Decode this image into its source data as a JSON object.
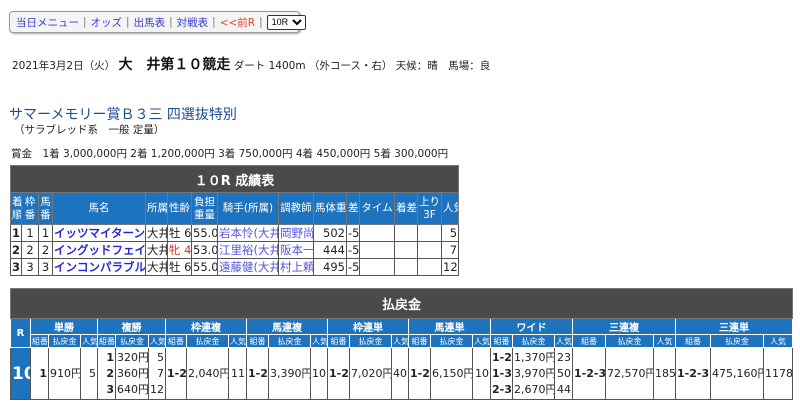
{
  "nav": {
    "menu": "当日メニュー",
    "odds": "オッズ",
    "entries": "出馬表",
    "matchup": "対戦表",
    "prev": "<<前R",
    "race_select": "10R"
  },
  "race": {
    "date": "2021年3月2日（火）",
    "name": "大　井第１０競走",
    "course": "ダート 1400m （外コース・右） 天候：晴　馬場：良"
  },
  "title": "サマーメモリー賞Ｂ３三 四選抜特別",
  "subtitle": "（サラブレッド系　一般 定量）",
  "prize": "賞金　1着 3,000,000円 2着 1,200,000円 3着 750,000円 4着 450,000円 5着 300,000円",
  "results": {
    "caption": "１０R 成績表",
    "headers": [
      "着順",
      "枠番",
      "馬番",
      "馬名",
      "所属",
      "性齢",
      "負担重量",
      "騎手(所属)",
      "調教師",
      "馬体重",
      "差",
      "タイム",
      "着差",
      "上り3F",
      "人気"
    ],
    "rows": [
      {
        "pos": "1",
        "frame": "1",
        "num": "1",
        "horse": "イッツマイターン",
        "belong": "大井",
        "sexage": "牡 6",
        "weight": "55.0",
        "jockey": "岩本怜(大井)",
        "trainer": "岡野尚",
        "body": "502",
        "diff": "-5",
        "time": "",
        "margin": "",
        "f3": "",
        "pop": "5"
      },
      {
        "pos": "2",
        "frame": "2",
        "num": "2",
        "horse": "イングッドフェイス",
        "belong": "大井",
        "sexage": "牝 4",
        "weight": "53.0",
        "jockey": "江里裕(大井)",
        "trainer": "阪本一",
        "body": "444",
        "diff": "-5",
        "time": "",
        "margin": "",
        "f3": "",
        "pop": "7"
      },
      {
        "pos": "3",
        "frame": "3",
        "num": "3",
        "horse": "インコンパラブル",
        "belong": "大井",
        "sexage": "牡 6",
        "weight": "55.0",
        "jockey": "遠藤健(大井)",
        "trainer": "村上頼",
        "body": "495",
        "diff": "-5",
        "time": "",
        "margin": "",
        "f3": "",
        "pop": "12"
      }
    ]
  },
  "payout": {
    "caption": "払戻金",
    "r_label": "R",
    "race": "10",
    "sub": [
      "組番",
      "払戻金",
      "人気"
    ],
    "groups": [
      {
        "name": "単勝",
        "combo": "1",
        "pay": "910円",
        "pop": "5"
      },
      {
        "name": "複勝",
        "combo": "1\n2\n3",
        "pay": "320円\n360円\n640円",
        "pop": "5\n7\n12"
      },
      {
        "name": "枠連複",
        "combo": "1-2",
        "pay": "2,040円",
        "pop": "11"
      },
      {
        "name": "馬連複",
        "combo": "1-2",
        "pay": "3,390円",
        "pop": "10"
      },
      {
        "name": "枠連単",
        "combo": "1-2",
        "pay": "7,020円",
        "pop": "40"
      },
      {
        "name": "馬連単",
        "combo": "1-2",
        "pay": "6,150円",
        "pop": "10"
      },
      {
        "name": "ワイド",
        "combo": "1-2\n1-3\n2-3",
        "pay": "1,370円\n3,970円\n2,670円",
        "pop": "23\n50\n44"
      },
      {
        "name": "三連複",
        "combo": "1-2-3",
        "pay": "72,570円",
        "pop": "185"
      },
      {
        "name": "三連単",
        "combo": "1-2-3",
        "pay": "475,160円",
        "pop": "1178"
      }
    ]
  },
  "colors": {
    "header_blue": "#1e73be",
    "caption_gray": "#4a4a4a",
    "link": "#2727d9",
    "prev": "#e8452a"
  }
}
